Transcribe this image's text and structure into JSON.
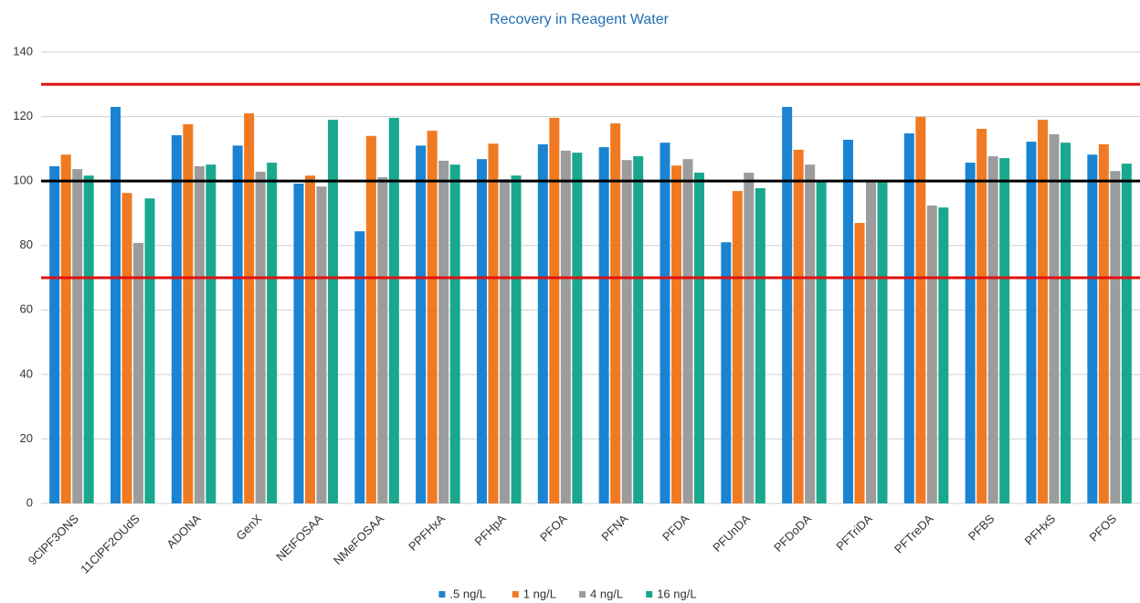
{
  "chart_data": {
    "type": "bar",
    "title": "Recovery in Reagent Water",
    "categories": [
      "9ClPF3ONS",
      "11ClPF2OUdS",
      "ADONA",
      "GenX",
      "NEtFOSAA",
      "NMeFOSAA",
      "PPFHxA",
      "PFHpA",
      "PFOA",
      "PFNA",
      "PFDA",
      "PFUnDA",
      "PFDoDA",
      "PFTriDA",
      "PFTreDA",
      "PFBS",
      "PFHxS",
      "PFOS"
    ],
    "series": [
      {
        "name": ".5 ng/L",
        "color": "#1a84d2",
        "values": [
          104.6,
          123,
          114.2,
          111,
          99.2,
          84.4,
          111,
          106.8,
          111.4,
          110.5,
          111.9,
          81,
          123,
          112.8,
          114.8,
          105.7,
          112.2,
          108.2
        ]
      },
      {
        "name": "1 ng/L",
        "color": "#f07a22",
        "values": [
          108.2,
          96.3,
          117.6,
          121,
          101.7,
          114,
          115.6,
          111.6,
          119.6,
          117.9,
          104.8,
          96.9,
          109.7,
          87,
          119.9,
          116.2,
          119,
          111.4
        ]
      },
      {
        "name": "4 ng/L",
        "color": "#9c9c9c",
        "values": [
          103.7,
          80.8,
          104.6,
          102.9,
          98.3,
          101.2,
          106.3,
          100.6,
          109.4,
          106.5,
          106.8,
          102.6,
          105.1,
          100,
          92.4,
          107.7,
          114.5,
          103.1
        ]
      },
      {
        "name": "16 ng/L",
        "color": "#19a88e",
        "values": [
          101.7,
          94.6,
          105.1,
          105.7,
          119,
          119.6,
          105.1,
          101.7,
          108.8,
          107.7,
          102.6,
          97.8,
          100,
          100,
          91.8,
          107.1,
          111.9,
          105.4
        ]
      }
    ],
    "reference_lines": [
      {
        "value": 130,
        "color": "#e01010"
      },
      {
        "value": 100,
        "color": "#000000"
      },
      {
        "value": 70,
        "color": "#e01010"
      }
    ],
    "ylim": [
      0,
      140
    ],
    "yticks": [
      0,
      20,
      40,
      60,
      80,
      100,
      120,
      140
    ],
    "grid": true
  }
}
